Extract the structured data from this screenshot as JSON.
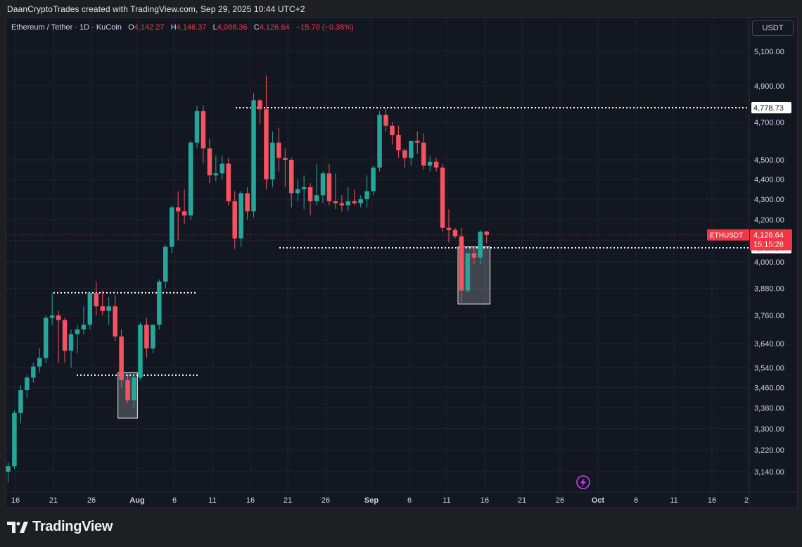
{
  "header": {
    "credit": "DaanCryptoTrades created with TradingView.com, Sep 29, 2025 10:44 UTC+2"
  },
  "legend": {
    "symbol": "Ethereum / Tether · 1D · KuCoin",
    "o_label": "O",
    "o_value": "4,142.27",
    "h_label": "H",
    "h_value": "4,146.37",
    "l_label": "L",
    "l_value": "4,088.36",
    "c_label": "C",
    "c_value": "4,126.64",
    "change": "−15.70 (−0.38%)"
  },
  "currency_button": "USDT",
  "brand": {
    "logo_text": "TradingView"
  },
  "colors": {
    "up": "#26a69a",
    "down": "#f7525f",
    "background": "#131722",
    "grid": "#1f2330",
    "text": "#d1d4dc",
    "price_label": "#f23645"
  },
  "chart_data": {
    "type": "candlestick",
    "symbol": "ETHUSDT",
    "timeframe": "1D",
    "y_axis": {
      "ticks": [
        3140,
        3220,
        3300,
        3380,
        3460,
        3540,
        3640,
        3760,
        3880,
        4000,
        4100,
        4200,
        4300,
        4400,
        4500,
        4700,
        4900,
        5100
      ],
      "tick_labels": [
        "3,140.00",
        "3,220.00",
        "3,300.00",
        "3,380.00",
        "3,460.00",
        "3,540.00",
        "3,640.00",
        "3,760.00",
        "3,880.00",
        "4,000.00",
        "4,100.00",
        "4,200.00",
        "4,300.00",
        "4,400.00",
        "4,500.00",
        "4,700.00",
        "4,900.00",
        "5,100.00"
      ],
      "scale": "log"
    },
    "x_axis": {
      "tick_labels": [
        "16",
        "21",
        "26",
        "Aug",
        "6",
        "11",
        "16",
        "21",
        "26",
        "Sep",
        "6",
        "11",
        "16",
        "21",
        "26",
        "Oct",
        "6",
        "11",
        "16",
        "2"
      ]
    },
    "candles": [
      [
        3140,
        3175,
        3100,
        3160
      ],
      [
        3160,
        3370,
        3150,
        3360
      ],
      [
        3360,
        3470,
        3320,
        3450
      ],
      [
        3450,
        3510,
        3420,
        3500
      ],
      [
        3500,
        3560,
        3480,
        3545
      ],
      [
        3545,
        3620,
        3520,
        3580
      ],
      [
        3580,
        3760,
        3560,
        3750
      ],
      [
        3750,
        3860,
        3720,
        3760
      ],
      [
        3760,
        3780,
        3560,
        3740
      ],
      [
        3740,
        3750,
        3560,
        3610
      ],
      [
        3610,
        3700,
        3540,
        3680
      ],
      [
        3680,
        3720,
        3600,
        3700
      ],
      [
        3700,
        3800,
        3680,
        3720
      ],
      [
        3720,
        3860,
        3700,
        3860
      ],
      [
        3860,
        3910,
        3760,
        3800
      ],
      [
        3800,
        3870,
        3760,
        3780
      ],
      [
        3780,
        3840,
        3720,
        3800
      ],
      [
        3800,
        3850,
        3650,
        3670
      ],
      [
        3670,
        3700,
        3460,
        3490
      ],
      [
        3490,
        3520,
        3400,
        3410
      ],
      [
        3410,
        3520,
        3380,
        3500
      ],
      [
        3500,
        3730,
        3490,
        3720
      ],
      [
        3720,
        3750,
        3580,
        3620
      ],
      [
        3620,
        3720,
        3600,
        3720
      ],
      [
        3720,
        3920,
        3700,
        3910
      ],
      [
        3910,
        4080,
        3880,
        4070
      ],
      [
        4070,
        4270,
        4040,
        4260
      ],
      [
        4260,
        4340,
        4100,
        4240
      ],
      [
        4240,
        4350,
        4180,
        4220
      ],
      [
        4220,
        4600,
        4200,
        4590
      ],
      [
        4590,
        4790,
        4560,
        4760
      ],
      [
        4760,
        4790,
        4480,
        4560
      ],
      [
        4560,
        4610,
        4380,
        4420
      ],
      [
        4420,
        4520,
        4390,
        4430
      ],
      [
        4430,
        4520,
        4400,
        4480
      ],
      [
        4480,
        4510,
        4270,
        4290
      ],
      [
        4290,
        4340,
        4060,
        4110
      ],
      [
        4110,
        4340,
        4070,
        4330
      ],
      [
        4330,
        4360,
        4200,
        4240
      ],
      [
        4240,
        4860,
        4210,
        4820
      ],
      [
        4820,
        4830,
        4690,
        4770
      ],
      [
        4770,
        4960,
        4350,
        4400
      ],
      [
        4400,
        4650,
        4360,
        4590
      ],
      [
        4590,
        4670,
        4440,
        4510
      ],
      [
        4510,
        4560,
        4360,
        4500
      ],
      [
        4500,
        4510,
        4260,
        4330
      ],
      [
        4330,
        4400,
        4290,
        4350
      ],
      [
        4350,
        4420,
        4250,
        4360
      ],
      [
        4360,
        4380,
        4220,
        4290
      ],
      [
        4290,
        4480,
        4270,
        4320
      ],
      [
        4320,
        4440,
        4280,
        4430
      ],
      [
        4430,
        4480,
        4270,
        4290
      ],
      [
        4290,
        4430,
        4250,
        4280
      ],
      [
        4280,
        4320,
        4240,
        4270
      ],
      [
        4270,
        4360,
        4240,
        4290
      ],
      [
        4290,
        4350,
        4270,
        4280
      ],
      [
        4280,
        4320,
        4260,
        4300
      ],
      [
        4300,
        4420,
        4260,
        4340
      ],
      [
        4340,
        4470,
        4320,
        4460
      ],
      [
        4460,
        4760,
        4440,
        4740
      ],
      [
        4740,
        4780,
        4650,
        4680
      ],
      [
        4680,
        4700,
        4580,
        4630
      ],
      [
        4630,
        4680,
        4510,
        4550
      ],
      [
        4550,
        4560,
        4460,
        4510
      ],
      [
        4510,
        4590,
        4470,
        4600
      ],
      [
        4600,
        4650,
        4530,
        4590
      ],
      [
        4590,
        4640,
        4450,
        4470
      ],
      [
        4470,
        4520,
        4440,
        4490
      ],
      [
        4490,
        4510,
        4440,
        4460
      ],
      [
        4460,
        4480,
        4140,
        4160
      ],
      [
        4160,
        4250,
        4090,
        4150
      ],
      [
        4150,
        4160,
        4110,
        4120
      ],
      [
        4120,
        4160,
        3820,
        3870
      ],
      [
        3870,
        4040,
        3860,
        4040
      ],
      [
        4040,
        4070,
        3990,
        4020
      ],
      [
        4020,
        4150,
        3990,
        4142
      ],
      [
        4142.27,
        4146.37,
        4088.36,
        4126.64
      ]
    ],
    "levels": [
      {
        "label": "4,778.73",
        "value": 4778.73,
        "style": "dotted"
      },
      {
        "label": "4,065.54",
        "value": 4065.54,
        "style": "dotted"
      },
      {
        "value": 3860,
        "style": "dotted"
      },
      {
        "value": 3510,
        "style": "dotted"
      }
    ],
    "last_price": {
      "symbol_label": "ETHUSDT",
      "value_label": "4,126.64",
      "countdown": "15:15:28",
      "value": 4126.64
    },
    "boxes": [
      {
        "from_candle": 18,
        "to_candle": 20,
        "high": 3520,
        "low": 3340
      },
      {
        "from_candle": 72,
        "to_candle": 76,
        "high": 4070,
        "low": 3810
      }
    ]
  }
}
